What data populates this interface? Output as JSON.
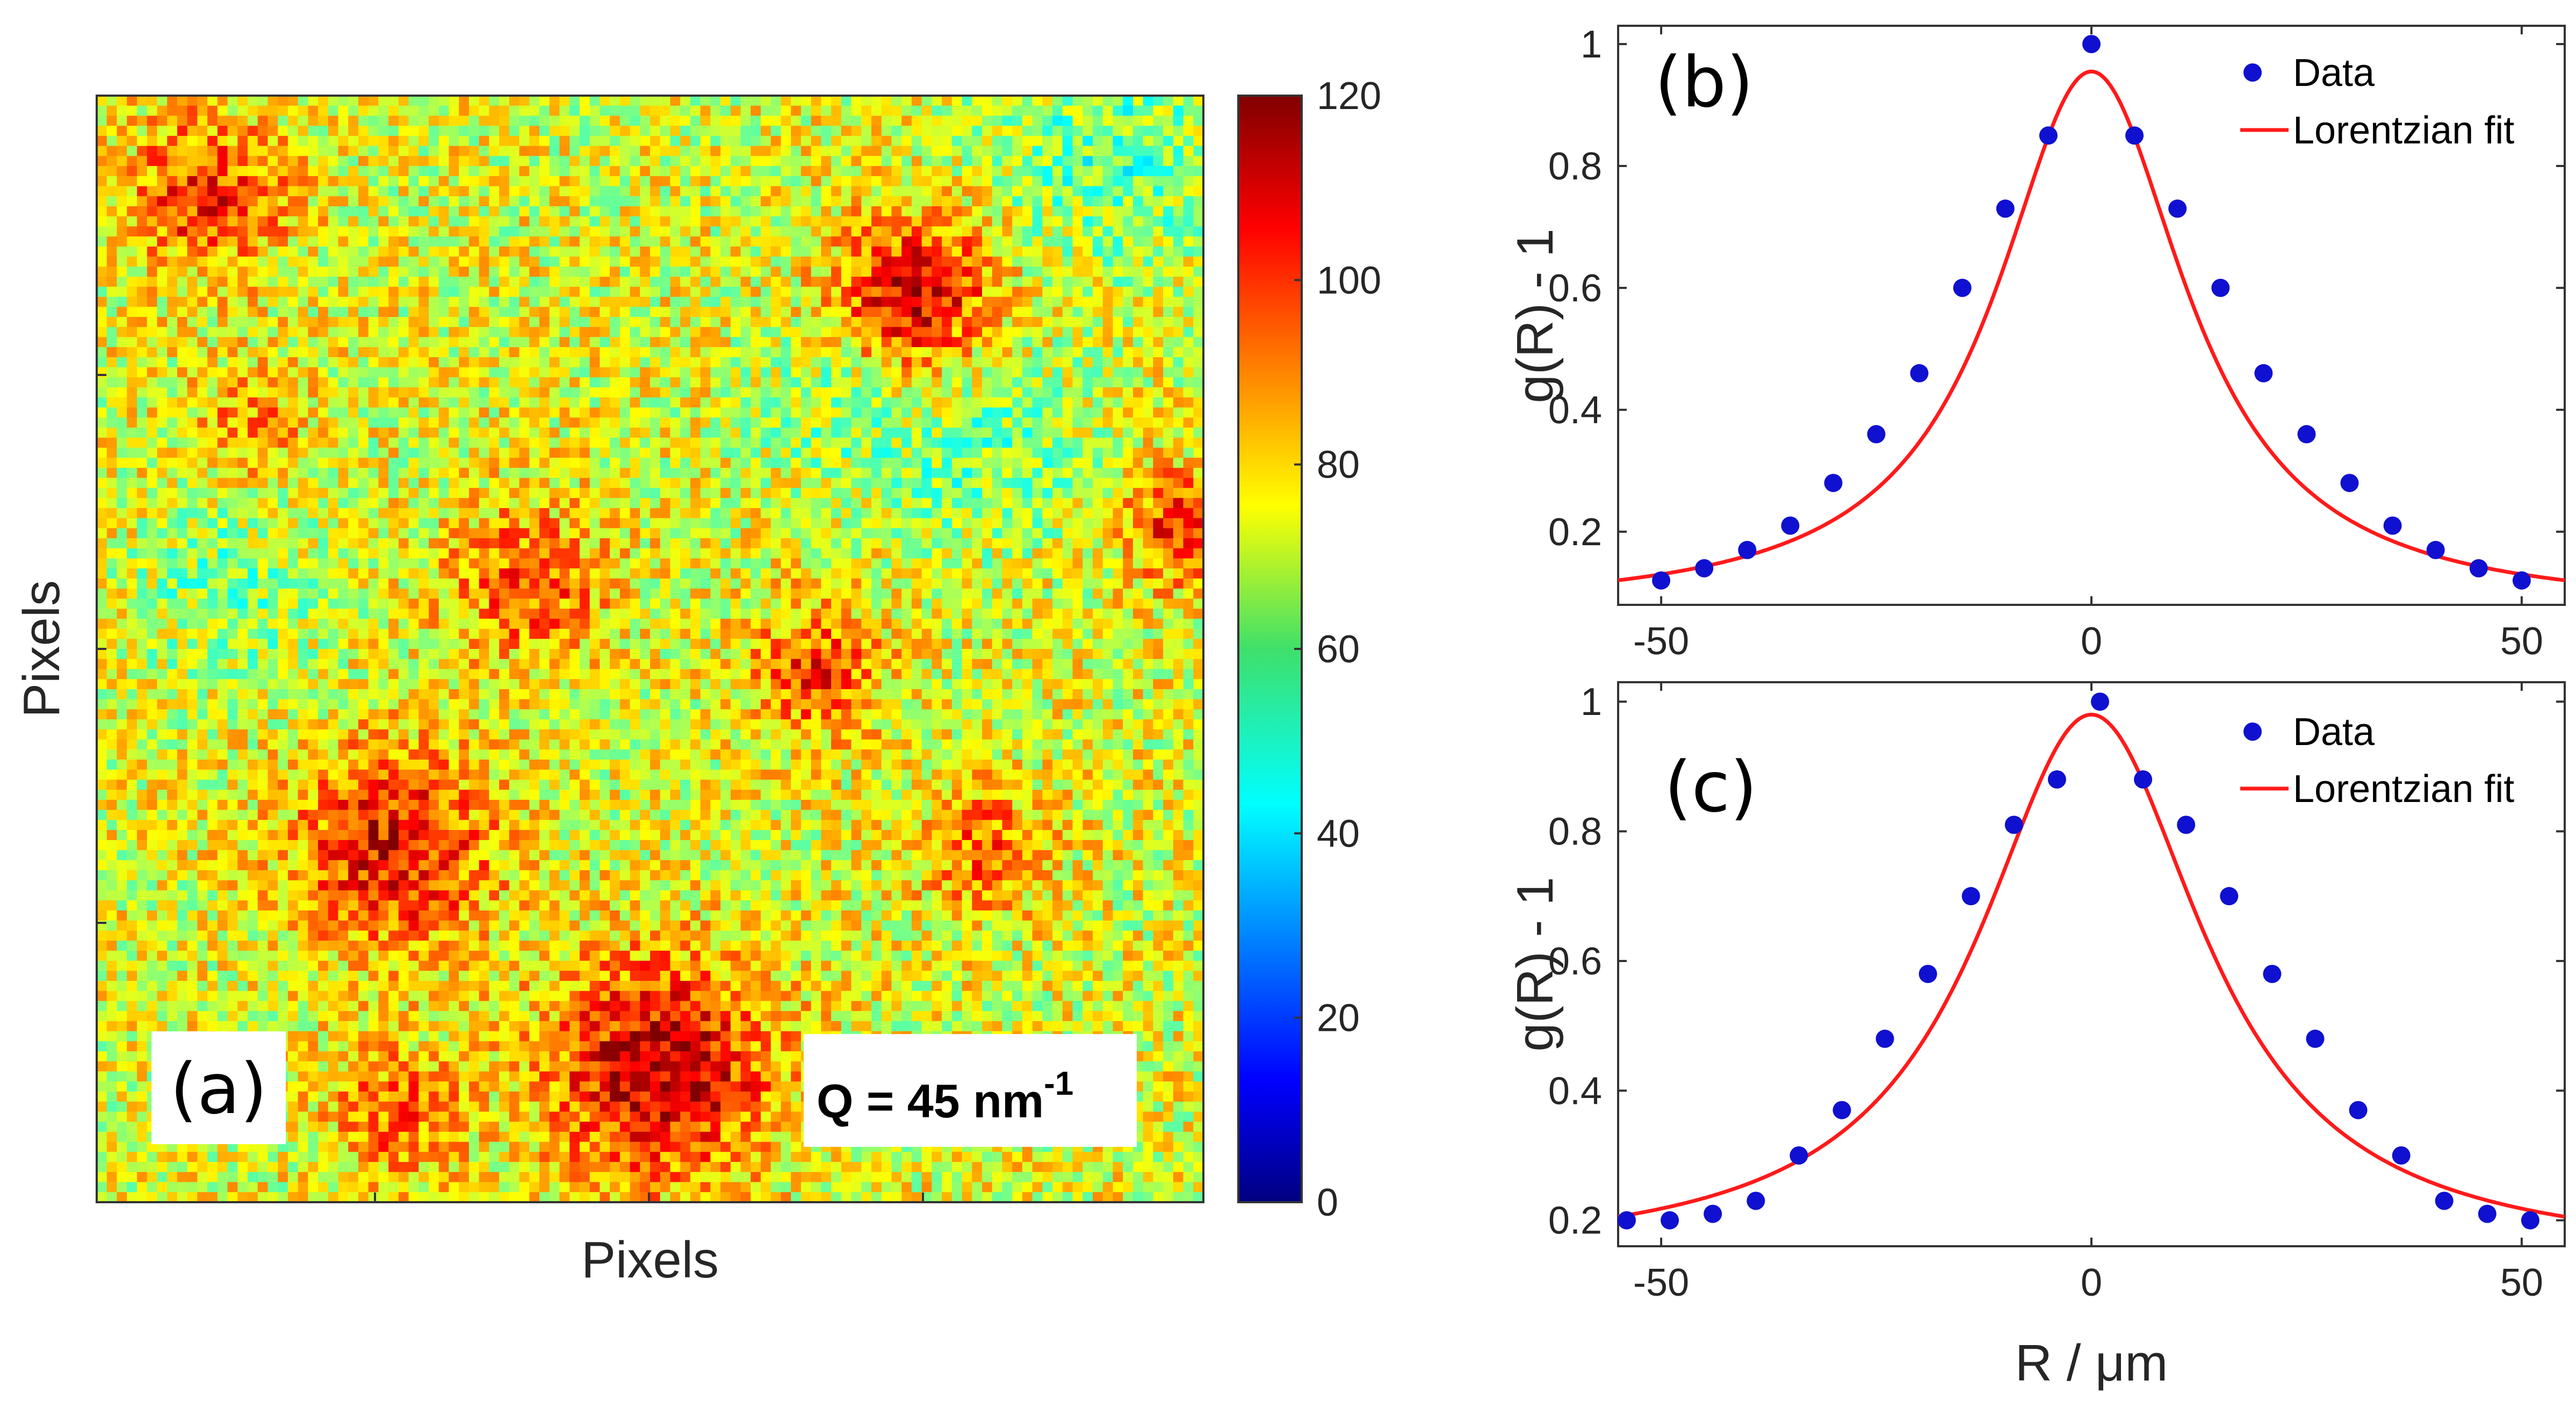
{
  "chart_data": [
    {
      "id": "a",
      "type": "heatmap",
      "panel_label": "(a)",
      "xlabel": "Pixels",
      "ylabel": "Pixels",
      "annotation": {
        "prefix": "Q = 45 nm",
        "superscript": "-1"
      },
      "colorbar": {
        "min": 0,
        "max": 120,
        "ticks": [
          0,
          20,
          40,
          60,
          80,
          100,
          120
        ],
        "colormap": "jet"
      },
      "hotspots": [
        {
          "cx": 0.1,
          "cy": 0.09,
          "r": 0.07,
          "amp": 30
        },
        {
          "cx": 0.74,
          "cy": 0.18,
          "r": 0.07,
          "amp": 38
        },
        {
          "cx": 0.27,
          "cy": 0.68,
          "r": 0.09,
          "amp": 34
        },
        {
          "cx": 0.51,
          "cy": 0.88,
          "r": 0.1,
          "amp": 42
        },
        {
          "cx": 0.39,
          "cy": 0.44,
          "r": 0.07,
          "amp": 24
        },
        {
          "cx": 0.65,
          "cy": 0.52,
          "r": 0.06,
          "amp": 26
        },
        {
          "cx": 0.98,
          "cy": 0.39,
          "r": 0.05,
          "amp": 30
        },
        {
          "cx": 0.8,
          "cy": 0.68,
          "r": 0.06,
          "amp": 20
        },
        {
          "cx": 0.27,
          "cy": 0.92,
          "r": 0.06,
          "amp": 22
        },
        {
          "cx": 0.14,
          "cy": 0.3,
          "r": 0.05,
          "amp": 16
        }
      ],
      "coolspots": [
        {
          "cx": 0.92,
          "cy": 0.05,
          "r": 0.1,
          "amp": -16
        },
        {
          "cx": 0.8,
          "cy": 0.32,
          "r": 0.09,
          "amp": -14
        },
        {
          "cx": 0.12,
          "cy": 0.45,
          "r": 0.08,
          "amp": -12
        },
        {
          "cx": 0.66,
          "cy": 0.28,
          "r": 0.07,
          "amp": -10
        }
      ]
    },
    {
      "id": "b",
      "type": "scatter",
      "panel_label": "(b)",
      "xlabel": "",
      "ylabel": "g(R) - 1",
      "xlim": [
        -55,
        55
      ],
      "ylim": [
        0.08,
        1.03
      ],
      "xticks": [
        -50,
        0,
        50
      ],
      "yticks": [
        0.2,
        0.4,
        0.6,
        0.8,
        1
      ],
      "series": [
        {
          "name": "Data",
          "kind": "markers",
          "color": "#1010d0",
          "x": [
            -50,
            -45,
            -40,
            -35,
            -30,
            -25,
            -20,
            -15,
            -10,
            -5,
            0,
            5,
            10,
            15,
            20,
            25,
            30,
            35,
            40,
            45,
            50
          ],
          "y": [
            0.12,
            0.14,
            0.17,
            0.21,
            0.28,
            0.36,
            0.46,
            0.6,
            0.73,
            0.85,
            1.0,
            0.85,
            0.73,
            0.6,
            0.46,
            0.36,
            0.28,
            0.21,
            0.17,
            0.14,
            0.12
          ]
        },
        {
          "name": "Lorentzian fit",
          "kind": "line",
          "color": "#ff1a1a",
          "model": {
            "form": "lorentzian",
            "baseline": 0.07,
            "amplitude": 0.885,
            "center": 0,
            "hwhm": 13.5
          }
        }
      ],
      "legend": "top-right"
    },
    {
      "id": "c",
      "type": "scatter",
      "panel_label": "(c)",
      "xlabel": "R / μm",
      "ylabel": "g(R) - 1",
      "xlim": [
        -55,
        55
      ],
      "ylim": [
        0.16,
        1.03
      ],
      "xticks": [
        -50,
        0,
        50
      ],
      "yticks": [
        0.2,
        0.4,
        0.6,
        0.8,
        1
      ],
      "series": [
        {
          "name": "Data",
          "kind": "markers",
          "color": "#1010d0",
          "x": [
            -54,
            -49,
            -44,
            -39,
            -34,
            -29,
            -24,
            -19,
            -14,
            -9,
            -4,
            1,
            6,
            11,
            16,
            21,
            26,
            31,
            36,
            41,
            46,
            51
          ],
          "y": [
            0.2,
            0.2,
            0.21,
            0.23,
            0.3,
            0.37,
            0.48,
            0.58,
            0.7,
            0.81,
            0.88,
            1.0,
            0.88,
            0.81,
            0.7,
            0.58,
            0.48,
            0.37,
            0.3,
            0.23,
            0.21,
            0.2
          ]
        },
        {
          "name": "Lorentzian fit",
          "kind": "line",
          "color": "#ff1a1a",
          "model": {
            "form": "lorentzian",
            "baseline": 0.14,
            "amplitude": 0.84,
            "center": 0,
            "hwhm": 16
          }
        }
      ],
      "legend": "top-right"
    }
  ]
}
